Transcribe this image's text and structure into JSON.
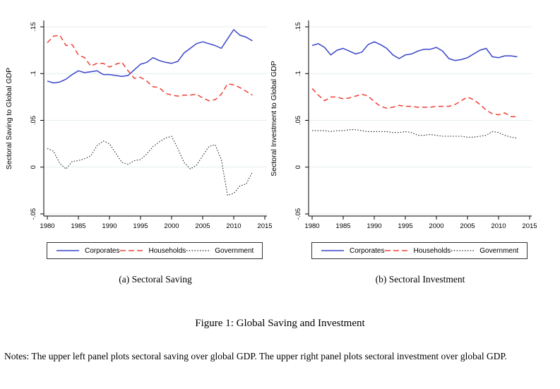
{
  "figure": {
    "caption": "Figure 1: Global Saving and Investment",
    "notes": "Notes: The upper left panel plots sectoral saving over global GDP. The upper right panel plots sectoral investment over global GDP."
  },
  "colors": {
    "corporates": "#3a45c8",
    "households": "#ee3f35",
    "government": "#222222",
    "gridline": "#e4eef0",
    "axis": "#000000"
  },
  "legend": {
    "entries": [
      {
        "label": "Corporates",
        "style": "solid",
        "color": "#3a45c8"
      },
      {
        "label": "Households",
        "style": "dashed",
        "color": "#ee3f35"
      },
      {
        "label": "Government",
        "style": "dotted",
        "color": "#222222"
      }
    ]
  },
  "chart_data": [
    {
      "type": "line",
      "title": "(a) Sectoral Saving",
      "ylabel": "Sectoral Saving to Global GDP",
      "xlabel": "",
      "xlim": [
        1979.5,
        2015.5
      ],
      "ylim": [
        -0.06,
        0.158
      ],
      "xticks": [
        1980,
        1985,
        1990,
        1995,
        2000,
        2005,
        2010,
        2015
      ],
      "yticks": [
        0.15,
        0.1,
        0.05,
        0,
        -0.05
      ],
      "ytick_labels": [
        ".15",
        ".1",
        ".05",
        "0",
        "-.05"
      ],
      "grid": true,
      "legend_position": "bottom",
      "x": [
        1980,
        1981,
        1982,
        1983,
        1984,
        1985,
        1986,
        1987,
        1988,
        1989,
        1990,
        1991,
        1992,
        1993,
        1994,
        1995,
        1996,
        1997,
        1998,
        1999,
        2000,
        2001,
        2002,
        2003,
        2004,
        2005,
        2006,
        2007,
        2008,
        2009,
        2010,
        2011,
        2012,
        2013
      ],
      "series": [
        {
          "name": "Corporates",
          "style": "solid",
          "color": "#3a45c8",
          "values": [
            0.092,
            0.09,
            0.091,
            0.094,
            0.099,
            0.103,
            0.101,
            0.102,
            0.103,
            0.099,
            0.099,
            0.098,
            0.097,
            0.098,
            0.104,
            0.11,
            0.112,
            0.117,
            0.114,
            0.112,
            0.111,
            0.113,
            0.122,
            0.127,
            0.132,
            0.134,
            0.132,
            0.13,
            0.127,
            0.137,
            0.147,
            0.141,
            0.139,
            0.135
          ]
        },
        {
          "name": "Households",
          "style": "dashed",
          "color": "#ee3f35",
          "values": [
            0.133,
            0.14,
            0.141,
            0.13,
            0.131,
            0.12,
            0.117,
            0.108,
            0.111,
            0.111,
            0.107,
            0.11,
            0.112,
            0.103,
            0.095,
            0.096,
            0.092,
            0.086,
            0.085,
            0.079,
            0.077,
            0.076,
            0.077,
            0.077,
            0.078,
            0.074,
            0.071,
            0.072,
            0.078,
            0.089,
            0.088,
            0.085,
            0.081,
            0.077
          ]
        },
        {
          "name": "Government",
          "style": "dotted",
          "color": "#222222",
          "values": [
            0.02,
            0.017,
            0.004,
            -0.002,
            0.006,
            0.007,
            0.009,
            0.012,
            0.023,
            0.028,
            0.025,
            0.015,
            0.005,
            0.003,
            0.007,
            0.008,
            0.014,
            0.022,
            0.027,
            0.031,
            0.033,
            0.02,
            0.005,
            -0.002,
            0.002,
            0.012,
            0.022,
            0.024,
            0.008,
            -0.03,
            -0.028,
            -0.02,
            -0.018,
            -0.005
          ]
        }
      ]
    },
    {
      "type": "line",
      "title": "(b) Sectoral Investment",
      "ylabel": "Sectoral Investment to Global GDP",
      "xlabel": "",
      "xlim": [
        1979.5,
        2015.5
      ],
      "ylim": [
        -0.06,
        0.158
      ],
      "xticks": [
        1980,
        1985,
        1990,
        1995,
        2000,
        2005,
        2010,
        2015
      ],
      "yticks": [
        0.15,
        0.1,
        0.05,
        0,
        -0.05
      ],
      "ytick_labels": [
        ".15",
        ".1",
        ".05",
        "0",
        "-.05"
      ],
      "grid": true,
      "legend_position": "bottom",
      "x": [
        1980,
        1981,
        1982,
        1983,
        1984,
        1985,
        1986,
        1987,
        1988,
        1989,
        1990,
        1991,
        1992,
        1993,
        1994,
        1995,
        1996,
        1997,
        1998,
        1999,
        2000,
        2001,
        2002,
        2003,
        2004,
        2005,
        2006,
        2007,
        2008,
        2009,
        2010,
        2011,
        2012,
        2013
      ],
      "series": [
        {
          "name": "Corporates",
          "style": "solid",
          "color": "#3a45c8",
          "values": [
            0.13,
            0.132,
            0.128,
            0.12,
            0.125,
            0.127,
            0.124,
            0.121,
            0.123,
            0.131,
            0.134,
            0.131,
            0.127,
            0.12,
            0.116,
            0.12,
            0.121,
            0.124,
            0.126,
            0.126,
            0.128,
            0.124,
            0.116,
            0.114,
            0.115,
            0.117,
            0.121,
            0.125,
            0.127,
            0.118,
            0.117,
            0.119,
            0.119,
            0.118
          ]
        },
        {
          "name": "Households",
          "style": "dashed",
          "color": "#ee3f35",
          "values": [
            0.084,
            0.077,
            0.071,
            0.075,
            0.075,
            0.073,
            0.074,
            0.076,
            0.078,
            0.076,
            0.07,
            0.065,
            0.063,
            0.064,
            0.066,
            0.065,
            0.065,
            0.064,
            0.064,
            0.064,
            0.065,
            0.065,
            0.065,
            0.067,
            0.071,
            0.075,
            0.072,
            0.067,
            0.061,
            0.057,
            0.056,
            0.058,
            0.054,
            0.054
          ]
        },
        {
          "name": "Government",
          "style": "dotted",
          "color": "#222222",
          "values": [
            0.039,
            0.039,
            0.039,
            0.038,
            0.039,
            0.039,
            0.04,
            0.04,
            0.039,
            0.038,
            0.038,
            0.038,
            0.038,
            0.037,
            0.037,
            0.038,
            0.037,
            0.034,
            0.034,
            0.035,
            0.034,
            0.033,
            0.033,
            0.033,
            0.033,
            0.032,
            0.032,
            0.033,
            0.034,
            0.038,
            0.037,
            0.034,
            0.032,
            0.031
          ]
        }
      ]
    }
  ]
}
